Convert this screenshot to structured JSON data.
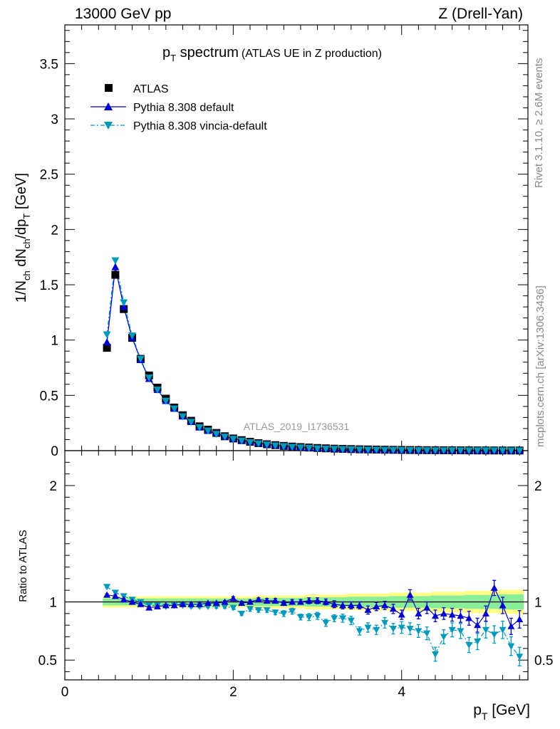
{
  "header": {
    "left": "13000 GeV pp",
    "right": "Z (Drell-Yan)"
  },
  "side_labels": {
    "rivet": "Rivet 3.1.10, ≥ 2.6M events",
    "source": "mcplots.cern.ch [arXiv:1306.3436]"
  },
  "analysis_id": "ATLAS_2019_I1736531",
  "colors": {
    "data": "#000000",
    "default": "#0000cc",
    "vincia": "#0099bb",
    "band_outer": "#ffff88",
    "band_inner": "#88ee99"
  },
  "chart_data": [
    {
      "type": "scatter",
      "title": {
        "main": "p",
        "main_sub": "T",
        "main_rest": " spectrum",
        "paren": "(ATLAS UE in Z production)"
      },
      "ylabel": "1/N_ch dN_ch/dp_T [GeV]",
      "xlim": [
        0,
        5.5
      ],
      "ylim": [
        0,
        3.85
      ],
      "x_ticks": [
        0,
        2,
        4
      ],
      "y_ticks": [
        0,
        0.5,
        1,
        1.5,
        2,
        2.5,
        3,
        3.5
      ],
      "y_tick_labels": [
        "0",
        "0.5",
        "1",
        "1.5",
        "2",
        "2.5",
        "3",
        "3.5"
      ],
      "legend": [
        "ATLAS",
        "Pythia 8.308 default",
        "Pythia 8.308 vincia-default"
      ],
      "x": [
        0.5,
        0.6,
        0.7,
        0.8,
        0.9,
        1.0,
        1.1,
        1.2,
        1.3,
        1.4,
        1.5,
        1.6,
        1.7,
        1.8,
        1.9,
        2.0,
        2.1,
        2.2,
        2.3,
        2.4,
        2.5,
        2.6,
        2.7,
        2.8,
        2.9,
        3.0,
        3.1,
        3.2,
        3.3,
        3.4,
        3.5,
        3.6,
        3.7,
        3.8,
        3.9,
        4.0,
        4.1,
        4.2,
        4.3,
        4.4,
        4.5,
        4.6,
        4.7,
        4.8,
        4.9,
        5.0,
        5.1,
        5.2,
        5.3,
        5.4
      ],
      "series": [
        {
          "name": "ATLAS",
          "values": [
            0.93,
            1.59,
            1.28,
            1.02,
            0.83,
            0.68,
            0.57,
            0.47,
            0.39,
            0.32,
            0.27,
            0.22,
            0.19,
            0.16,
            0.13,
            0.11,
            0.095,
            0.08,
            0.068,
            0.058,
            0.05,
            0.043,
            0.037,
            0.032,
            0.028,
            0.024,
            0.021,
            0.018,
            0.016,
            0.014,
            0.012,
            0.011,
            0.0095,
            0.0083,
            0.0073,
            0.0064,
            0.0056,
            0.005,
            0.0044,
            0.0039,
            0.0034,
            0.003,
            0.0027,
            0.0024,
            0.0021,
            0.0019,
            0.0017,
            0.0015,
            0.0013,
            0.0012
          ]
        },
        {
          "name": "Pythia 8.308 default",
          "values": [
            0.98,
            1.66,
            1.3,
            1.02,
            0.82,
            0.65,
            0.55,
            0.45,
            0.38,
            0.31,
            0.26,
            0.21,
            0.18,
            0.16,
            0.13,
            0.11,
            0.093,
            0.08,
            0.068,
            0.058,
            0.05,
            0.042,
            0.036,
            0.031,
            0.027,
            0.023,
            0.02,
            0.017,
            0.015,
            0.013,
            0.011,
            0.0099,
            0.0085,
            0.0075,
            0.0064,
            0.0056,
            0.005,
            0.0044,
            0.0039,
            0.0034,
            0.003,
            0.0027,
            0.0024,
            0.0021,
            0.0019,
            0.0017,
            0.0015,
            0.0013,
            0.0011,
            0.001
          ]
        },
        {
          "name": "Pythia 8.308 vincia-default",
          "values": [
            1.05,
            1.72,
            1.34,
            1.04,
            0.83,
            0.66,
            0.55,
            0.45,
            0.38,
            0.31,
            0.26,
            0.21,
            0.18,
            0.15,
            0.125,
            0.105,
            0.09,
            0.075,
            0.064,
            0.054,
            0.046,
            0.039,
            0.033,
            0.028,
            0.024,
            0.02,
            0.017,
            0.015,
            0.013,
            0.011,
            0.009,
            0.008,
            0.007,
            0.006,
            0.0052,
            0.0045,
            0.0039,
            0.0034,
            0.003,
            0.0026,
            0.0023,
            0.002,
            0.0018,
            0.0016,
            0.0014,
            0.0012,
            0.0011,
            0.001,
            0.0009,
            0.0008
          ]
        }
      ]
    },
    {
      "type": "scatter",
      "ylabel": "Ratio to ATLAS",
      "xlabel": "p_T [GeV]",
      "xlim": [
        0,
        5.5
      ],
      "ylim": [
        0.33,
        2.3
      ],
      "x_ticks": [
        0,
        2,
        4
      ],
      "y_ticks": [
        0.5,
        1,
        2
      ],
      "y_tick_labels": [
        "0.5",
        "1",
        "2"
      ],
      "x": [
        0.5,
        0.6,
        0.7,
        0.8,
        0.9,
        1.0,
        1.1,
        1.2,
        1.3,
        1.4,
        1.5,
        1.6,
        1.7,
        1.8,
        1.9,
        2.0,
        2.1,
        2.2,
        2.3,
        2.4,
        2.5,
        2.6,
        2.7,
        2.8,
        2.9,
        3.0,
        3.1,
        3.2,
        3.3,
        3.4,
        3.5,
        3.6,
        3.7,
        3.8,
        3.9,
        4.0,
        4.1,
        4.2,
        4.3,
        4.4,
        4.5,
        4.6,
        4.7,
        4.8,
        4.9,
        5.0,
        5.1,
        5.2,
        5.3,
        5.4
      ],
      "band_half_width": [
        0.03,
        0.03,
        0.03,
        0.03,
        0.03,
        0.03,
        0.03,
        0.03,
        0.03,
        0.03,
        0.03,
        0.03,
        0.03,
        0.03,
        0.03,
        0.03,
        0.03,
        0.03,
        0.035,
        0.035,
        0.035,
        0.035,
        0.035,
        0.035,
        0.04,
        0.04,
        0.04,
        0.04,
        0.04,
        0.045,
        0.045,
        0.045,
        0.045,
        0.045,
        0.05,
        0.05,
        0.05,
        0.05,
        0.05,
        0.055,
        0.055,
        0.055,
        0.055,
        0.06,
        0.06,
        0.06,
        0.06,
        0.065,
        0.065,
        0.065
      ],
      "series": [
        {
          "name": "Pythia 8.308 default",
          "values": [
            1.06,
            1.05,
            1.02,
            1.0,
            0.98,
            0.95,
            0.96,
            0.97,
            0.97,
            0.98,
            0.98,
            0.98,
            0.99,
            0.99,
            1.0,
            1.03,
            0.99,
            1.0,
            1.02,
            1.01,
            1.01,
            0.99,
            1.0,
            1.0,
            1.01,
            1.01,
            1.0,
            0.98,
            0.97,
            0.97,
            0.97,
            0.93,
            0.96,
            0.97,
            0.94,
            0.89,
            1.06,
            0.9,
            0.95,
            0.88,
            0.9,
            0.89,
            0.88,
            0.86,
            0.8,
            0.9,
            1.12,
            0.97,
            0.79,
            0.85
          ],
          "errors": [
            0.01,
            0.01,
            0.01,
            0.01,
            0.01,
            0.01,
            0.01,
            0.01,
            0.01,
            0.01,
            0.01,
            0.01,
            0.01,
            0.01,
            0.01,
            0.015,
            0.015,
            0.015,
            0.015,
            0.02,
            0.02,
            0.02,
            0.02,
            0.02,
            0.025,
            0.025,
            0.025,
            0.03,
            0.03,
            0.03,
            0.03,
            0.035,
            0.035,
            0.035,
            0.04,
            0.04,
            0.045,
            0.045,
            0.05,
            0.05,
            0.05,
            0.055,
            0.055,
            0.06,
            0.06,
            0.065,
            0.065,
            0.07,
            0.07,
            0.075
          ]
        },
        {
          "name": "Pythia 8.308 vincia-default",
          "values": [
            1.13,
            1.08,
            1.05,
            1.02,
            1.0,
            0.97,
            0.97,
            0.96,
            0.97,
            0.97,
            0.96,
            0.96,
            0.96,
            0.96,
            0.96,
            0.95,
            0.9,
            0.94,
            0.93,
            0.93,
            0.91,
            0.9,
            0.92,
            0.87,
            0.87,
            0.88,
            0.82,
            0.86,
            0.86,
            0.84,
            0.75,
            0.78,
            0.76,
            0.82,
            0.77,
            0.78,
            0.77,
            0.75,
            0.73,
            0.55,
            0.7,
            0.76,
            0.75,
            0.63,
            0.66,
            0.76,
            0.72,
            0.76,
            0.62,
            0.53
          ],
          "errors": [
            0.01,
            0.01,
            0.01,
            0.01,
            0.01,
            0.01,
            0.01,
            0.01,
            0.01,
            0.01,
            0.01,
            0.01,
            0.01,
            0.015,
            0.015,
            0.015,
            0.015,
            0.02,
            0.02,
            0.02,
            0.02,
            0.025,
            0.025,
            0.025,
            0.03,
            0.03,
            0.03,
            0.03,
            0.035,
            0.035,
            0.035,
            0.04,
            0.04,
            0.045,
            0.045,
            0.05,
            0.05,
            0.055,
            0.055,
            0.06,
            0.06,
            0.06,
            0.065,
            0.065,
            0.07,
            0.07,
            0.075,
            0.075,
            0.08,
            0.08
          ]
        }
      ]
    }
  ]
}
